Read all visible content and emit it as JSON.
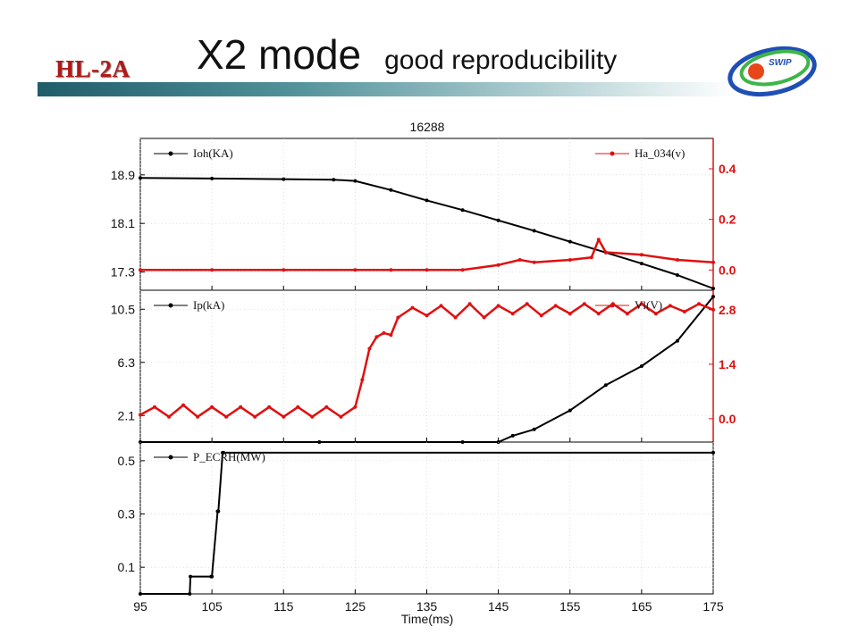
{
  "slide": {
    "logo_text": "HL-2A",
    "title": "X2 mode",
    "subtitle": "good reproducibility",
    "swip_label": "SWIP"
  },
  "chart_data": {
    "type": "line",
    "title": "16288",
    "xlabel": "Time(ms)",
    "xlim": [
      95,
      175
    ],
    "x_ticks": [
      "95",
      "105",
      "115",
      "125",
      "135",
      "145",
      "155",
      "165",
      "175"
    ],
    "panels": [
      {
        "ylim_left": [
          17.0,
          19.5
        ],
        "yticks_left": [
          "18.9",
          "18.1",
          "17.3"
        ],
        "ylim_right": [
          -0.08,
          0.52
        ],
        "yticks_right": [
          "0.4",
          "0.2",
          "0.0"
        ],
        "series": [
          {
            "name": "Ioh(KA)",
            "axis": "left",
            "color": "#000000",
            "x": [
              95,
              105,
              115,
              122,
              125,
              130,
              135,
              140,
              145,
              150,
              155,
              160,
              165,
              170,
              175
            ],
            "y": [
              18.85,
              18.84,
              18.83,
              18.82,
              18.8,
              18.65,
              18.48,
              18.32,
              18.15,
              17.98,
              17.8,
              17.62,
              17.44,
              17.25,
              17.03
            ]
          },
          {
            "name": "Ha_034(v)",
            "axis": "right",
            "color": "#e01010",
            "x": [
              95,
              105,
              115,
              125,
              130,
              135,
              140,
              145,
              148,
              150,
              155,
              158,
              159,
              160,
              165,
              170,
              175
            ],
            "y": [
              0.0,
              0.0,
              0.0,
              0.0,
              0.0,
              0.0,
              0.0,
              0.02,
              0.04,
              0.03,
              0.04,
              0.05,
              0.12,
              0.07,
              0.06,
              0.04,
              0.03
            ]
          }
        ]
      },
      {
        "ylim_left": [
          0,
          12
        ],
        "yticks_left": [
          "10.5",
          "6.3",
          "2.1"
        ],
        "ylim_right": [
          -0.6,
          3.3
        ],
        "yticks_right": [
          "2.8",
          "1.4",
          "0.0"
        ],
        "series": [
          {
            "name": "Ip(kA)",
            "axis": "left",
            "color": "#000000",
            "x": [
              95,
              120,
              140,
              145,
              147,
              150,
              155,
              160,
              165,
              170,
              175
            ],
            "y": [
              0.0,
              0.0,
              0.0,
              0.0,
              0.5,
              1.0,
              2.5,
              4.5,
              6.0,
              8.0,
              11.5
            ]
          },
          {
            "name": "Vl(V)",
            "axis": "right",
            "color": "#e01010",
            "x": [
              95,
              97,
              99,
              101,
              103,
              105,
              107,
              109,
              111,
              113,
              115,
              117,
              119,
              121,
              123,
              125,
              126,
              127,
              128,
              129,
              130,
              131,
              133,
              135,
              137,
              139,
              141,
              143,
              145,
              147,
              149,
              151,
              153,
              155,
              157,
              159,
              161,
              163,
              165,
              167,
              169,
              171,
              173,
              175
            ],
            "y": [
              0.1,
              0.3,
              0.05,
              0.35,
              0.05,
              0.3,
              0.05,
              0.3,
              0.05,
              0.3,
              0.05,
              0.3,
              0.05,
              0.3,
              0.05,
              0.3,
              1.0,
              1.8,
              2.1,
              2.2,
              2.15,
              2.6,
              2.85,
              2.65,
              2.9,
              2.6,
              2.95,
              2.6,
              2.9,
              2.7,
              2.95,
              2.65,
              2.9,
              2.7,
              2.95,
              2.7,
              2.95,
              2.7,
              2.95,
              2.7,
              2.9,
              2.75,
              2.95,
              2.8
            ]
          }
        ]
      },
      {
        "ylim_left": [
          0,
          0.57
        ],
        "yticks_left": [
          "0.5",
          "0.3",
          "0.1"
        ],
        "series": [
          {
            "name": "P_ECRH(MW)",
            "axis": "left",
            "color": "#000000",
            "x": [
              95,
              101.9,
              102,
              104.9,
              105,
              105.8,
              105.9,
              106.5,
              106.6,
              175
            ],
            "y": [
              0.0,
              0.0,
              0.065,
              0.065,
              0.065,
              0.31,
              0.31,
              0.53,
              0.53,
              0.53
            ]
          }
        ]
      }
    ]
  }
}
